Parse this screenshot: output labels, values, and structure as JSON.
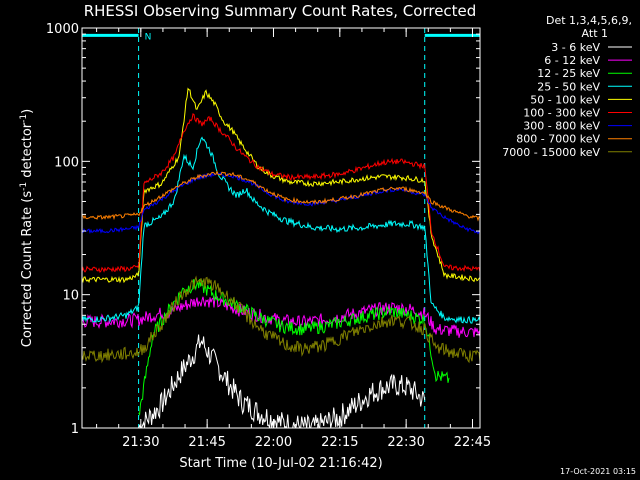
{
  "chart_data": {
    "type": "line",
    "title": "RHESSI Observing Summary Count Rates, Corrected",
    "xlabel": "Start Time (10-Jul-02 21:16:42)",
    "ylabel": "Corrected Count Rate (s",
    "ylabel_sup1": "-1",
    "ylabel_mid": " detector",
    "ylabel_sup2": "-1",
    "ylabel_end": ")",
    "x_unit": "minutes since 21:16:42",
    "xlim": [
      0,
      90
    ],
    "ylim": [
      1,
      1000
    ],
    "y_scale": "log",
    "x_ticks": [
      {
        "value": 13.3,
        "label": "21:30"
      },
      {
        "value": 28.3,
        "label": "21:45"
      },
      {
        "value": 43.3,
        "label": "22:00"
      },
      {
        "value": 58.3,
        "label": "22:15"
      },
      {
        "value": 73.3,
        "label": "22:30"
      },
      {
        "value": 88.3,
        "label": "22:45"
      }
    ],
    "y_ticks": [
      {
        "value": 1,
        "label": "1"
      },
      {
        "value": 10,
        "label": "10"
      },
      {
        "value": 100,
        "label": "100"
      },
      {
        "value": 1000,
        "label": "1000"
      }
    ],
    "legend": {
      "header1": "Det 1,3,4,5,6,9,",
      "header2": "Att 1",
      "placement": "right"
    },
    "night_intervals": [
      [
        0,
        12.8
      ],
      [
        77.5,
        90
      ]
    ],
    "flag_label": "N",
    "flag_level": 880,
    "date_stamp": "17-Oct-2021 03:15",
    "series": [
      {
        "name": "3 - 6 keV",
        "color": "#ffffff",
        "points": [
          [
            12.8,
            1.0
          ],
          [
            18,
            1.5
          ],
          [
            22,
            2.5
          ],
          [
            25,
            3.5
          ],
          [
            27,
            4.5
          ],
          [
            29,
            3.5
          ],
          [
            31,
            2.8
          ],
          [
            33,
            2.2
          ],
          [
            36,
            1.6
          ],
          [
            40,
            1.3
          ],
          [
            45,
            1.1
          ],
          [
            52,
            1.0
          ],
          [
            58,
            1.2
          ],
          [
            62,
            1.5
          ],
          [
            65,
            1.8
          ],
          [
            68,
            2.0
          ],
          [
            71,
            2.1
          ],
          [
            74,
            2.0
          ],
          [
            77.5,
            1.6
          ]
        ]
      },
      {
        "name": "6 - 12 keV",
        "color": "#ff00ff",
        "points": [
          [
            0,
            6.3
          ],
          [
            5,
            6.3
          ],
          [
            10,
            6.4
          ],
          [
            12.8,
            6.5
          ],
          [
            16,
            7.0
          ],
          [
            20,
            7.5
          ],
          [
            24,
            8.5
          ],
          [
            27,
            9.2
          ],
          [
            30,
            8.8
          ],
          [
            33,
            8.2
          ],
          [
            36,
            7.6
          ],
          [
            40,
            7.0
          ],
          [
            45,
            6.4
          ],
          [
            50,
            6.2
          ],
          [
            55,
            6.5
          ],
          [
            60,
            7.0
          ],
          [
            65,
            7.6
          ],
          [
            70,
            8.0
          ],
          [
            74,
            7.8
          ],
          [
            77.5,
            7.2
          ],
          [
            80,
            5.5
          ],
          [
            85,
            5.3
          ],
          [
            90,
            5.2
          ]
        ]
      },
      {
        "name": "12 - 25 keV",
        "color": "#00ff00",
        "points": [
          [
            12.8,
            1.2
          ],
          [
            16,
            5.0
          ],
          [
            20,
            8.0
          ],
          [
            23,
            11
          ],
          [
            26,
            12
          ],
          [
            28,
            11
          ],
          [
            30,
            10
          ],
          [
            33,
            9
          ],
          [
            36,
            8
          ],
          [
            40,
            6.8
          ],
          [
            45,
            5.8
          ],
          [
            50,
            5.5
          ],
          [
            55,
            5.8
          ],
          [
            60,
            6.4
          ],
          [
            65,
            7.0
          ],
          [
            70,
            7.5
          ],
          [
            74,
            7.0
          ],
          [
            77.5,
            6.5
          ],
          [
            80,
            2.5
          ],
          [
            83,
            2.3
          ]
        ]
      },
      {
        "name": "25 - 50 keV",
        "color": "#00ffff",
        "points": [
          [
            0,
            6.5
          ],
          [
            5,
            6.6
          ],
          [
            10,
            7.0
          ],
          [
            12.8,
            8.0
          ],
          [
            14,
            33
          ],
          [
            18,
            38
          ],
          [
            21,
            52
          ],
          [
            23,
            110
          ],
          [
            25,
            90
          ],
          [
            27,
            155
          ],
          [
            29,
            120
          ],
          [
            31,
            80
          ],
          [
            33,
            65
          ],
          [
            35,
            55
          ],
          [
            37,
            62
          ],
          [
            39,
            50
          ],
          [
            42,
            42
          ],
          [
            46,
            36
          ],
          [
            52,
            32
          ],
          [
            58,
            31
          ],
          [
            64,
            32
          ],
          [
            70,
            34
          ],
          [
            74,
            34
          ],
          [
            77.5,
            32
          ],
          [
            79,
            8.5
          ],
          [
            82,
            6.7
          ],
          [
            86,
            6.5
          ],
          [
            90,
            6.4
          ]
        ]
      },
      {
        "name": "50 - 100 keV",
        "color": "#ffff00",
        "points": [
          [
            0,
            13
          ],
          [
            5,
            13
          ],
          [
            10,
            13
          ],
          [
            12.8,
            14
          ],
          [
            14,
            60
          ],
          [
            18,
            68
          ],
          [
            22,
            110
          ],
          [
            24,
            360
          ],
          [
            26,
            240
          ],
          [
            28,
            330
          ],
          [
            30,
            270
          ],
          [
            32,
            200
          ],
          [
            34,
            170
          ],
          [
            36,
            135
          ],
          [
            38,
            110
          ],
          [
            40,
            90
          ],
          [
            43,
            78
          ],
          [
            47,
            70
          ],
          [
            52,
            68
          ],
          [
            58,
            70
          ],
          [
            63,
            74
          ],
          [
            68,
            77
          ],
          [
            72,
            76
          ],
          [
            77.5,
            72
          ],
          [
            79,
            28
          ],
          [
            82,
            14
          ],
          [
            86,
            13.5
          ],
          [
            90,
            13
          ]
        ]
      },
      {
        "name": "100 - 300 keV",
        "color": "#ff0000",
        "points": [
          [
            0,
            15.5
          ],
          [
            5,
            15.5
          ],
          [
            10,
            15.6
          ],
          [
            12.8,
            16
          ],
          [
            14,
            68
          ],
          [
            18,
            82
          ],
          [
            21,
            110
          ],
          [
            23,
            170
          ],
          [
            25,
            220
          ],
          [
            27,
            190
          ],
          [
            29,
            210
          ],
          [
            31,
            175
          ],
          [
            33,
            150
          ],
          [
            35,
            125
          ],
          [
            37,
            108
          ],
          [
            40,
            90
          ],
          [
            43,
            80
          ],
          [
            47,
            76
          ],
          [
            52,
            76
          ],
          [
            58,
            80
          ],
          [
            63,
            88
          ],
          [
            68,
            98
          ],
          [
            72,
            100
          ],
          [
            77.5,
            92
          ],
          [
            79,
            30
          ],
          [
            82,
            16
          ],
          [
            86,
            15.8
          ],
          [
            90,
            15.5
          ]
        ]
      },
      {
        "name": "300 - 800 keV",
        "color": "#0000ff",
        "points": [
          [
            0,
            30
          ],
          [
            5,
            30
          ],
          [
            10,
            31
          ],
          [
            12.8,
            32
          ],
          [
            14,
            43
          ],
          [
            18,
            52
          ],
          [
            22,
            64
          ],
          [
            26,
            75
          ],
          [
            30,
            80
          ],
          [
            34,
            78
          ],
          [
            38,
            70
          ],
          [
            42,
            58
          ],
          [
            46,
            50
          ],
          [
            52,
            48
          ],
          [
            58,
            51
          ],
          [
            63,
            55
          ],
          [
            68,
            60
          ],
          [
            72,
            62
          ],
          [
            77.5,
            56
          ],
          [
            79,
            45
          ],
          [
            82,
            38
          ],
          [
            86,
            32
          ],
          [
            90,
            29
          ]
        ]
      },
      {
        "name": "800 - 7000 keV",
        "color": "#ff8000",
        "points": [
          [
            0,
            38
          ],
          [
            5,
            38
          ],
          [
            10,
            39
          ],
          [
            12.8,
            40
          ],
          [
            14,
            46
          ],
          [
            18,
            55
          ],
          [
            22,
            66
          ],
          [
            26,
            76
          ],
          [
            30,
            82
          ],
          [
            34,
            80
          ],
          [
            38,
            72
          ],
          [
            42,
            60
          ],
          [
            46,
            52
          ],
          [
            52,
            49
          ],
          [
            58,
            52
          ],
          [
            63,
            56
          ],
          [
            68,
            61
          ],
          [
            72,
            63
          ],
          [
            77.5,
            58
          ],
          [
            79,
            50
          ],
          [
            82,
            45
          ],
          [
            86,
            40
          ],
          [
            90,
            37
          ]
        ]
      },
      {
        "name": "7000 - 15000 keV",
        "color": "#808000",
        "points": [
          [
            0,
            3.5
          ],
          [
            5,
            3.5
          ],
          [
            10,
            3.6
          ],
          [
            12.8,
            3.7
          ],
          [
            14,
            4.0
          ],
          [
            18,
            6.0
          ],
          [
            22,
            9.5
          ],
          [
            25,
            12
          ],
          [
            28,
            12.5
          ],
          [
            31,
            11
          ],
          [
            34,
            9
          ],
          [
            38,
            6.5
          ],
          [
            42,
            5.0
          ],
          [
            46,
            4.2
          ],
          [
            50,
            3.9
          ],
          [
            55,
            4.2
          ],
          [
            60,
            5.0
          ],
          [
            65,
            5.8
          ],
          [
            70,
            6.5
          ],
          [
            74,
            6.2
          ],
          [
            77.5,
            5.5
          ],
          [
            80,
            4.0
          ],
          [
            85,
            3.6
          ],
          [
            90,
            3.4
          ]
        ]
      }
    ]
  }
}
